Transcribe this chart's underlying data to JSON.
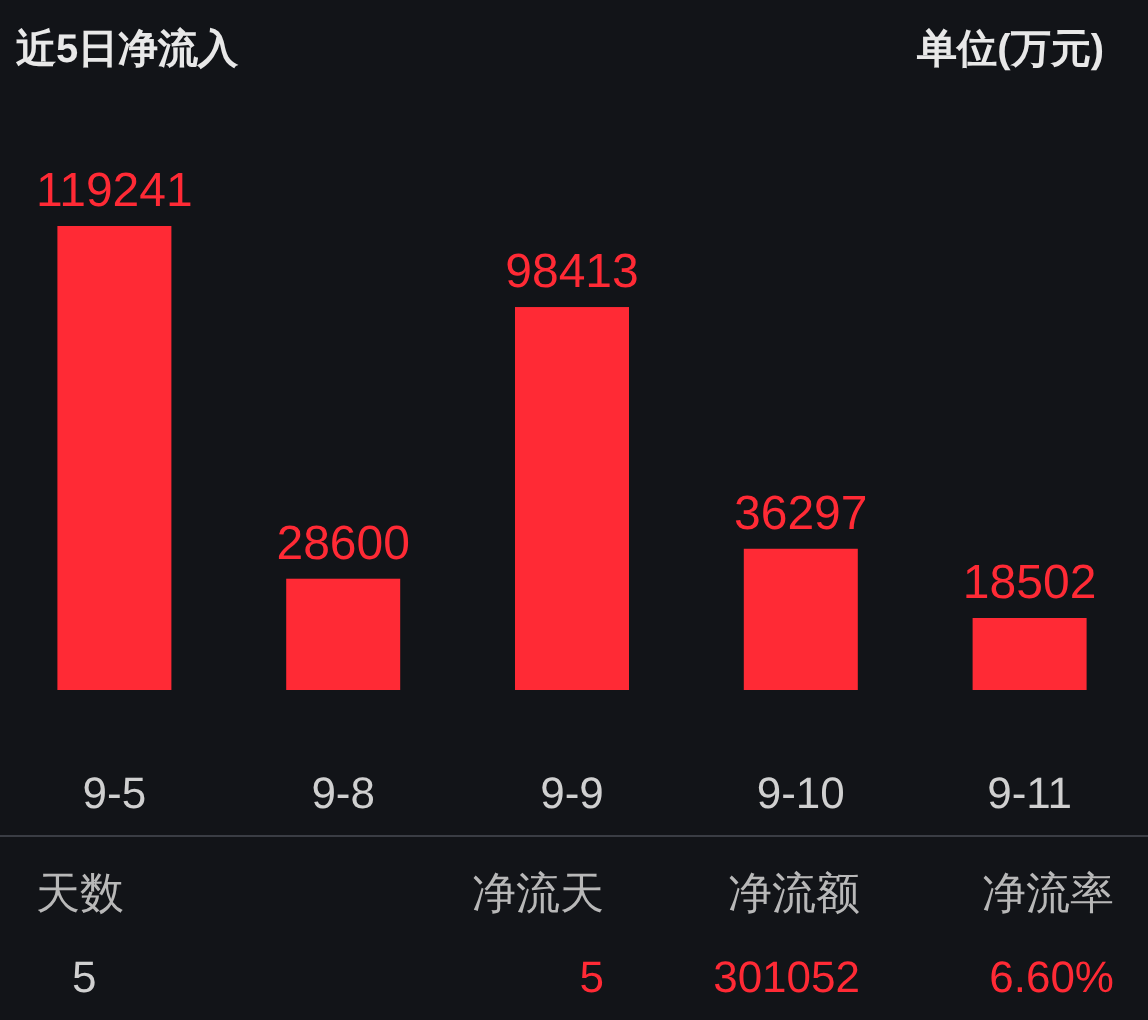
{
  "chart_data": {
    "type": "bar",
    "title": "近5日净流入",
    "categories": [
      "9-5",
      "9-8",
      "9-9",
      "9-10",
      "9-11"
    ],
    "values": [
      119241,
      28600,
      98413,
      36297,
      18502
    ],
    "color": "#ff2a35",
    "data_labels": true,
    "annotations": [
      "单位(万元)",
      "天数",
      "5",
      "净流天",
      "5",
      "净流额",
      "301052",
      "净流率",
      "6.60%"
    ]
  }
}
